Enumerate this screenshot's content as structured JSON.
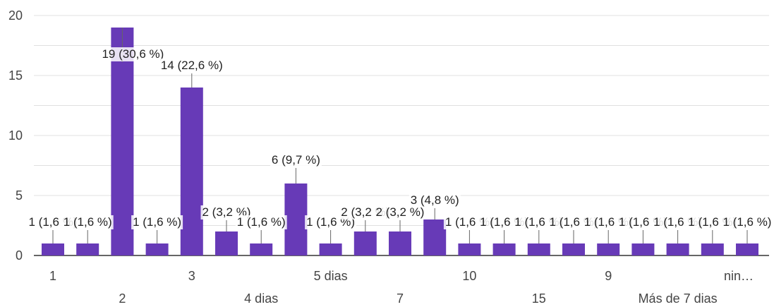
{
  "chart_data": {
    "type": "bar",
    "categories": [
      "1",
      "",
      "2",
      "",
      "3",
      "",
      "4 dias",
      "",
      "5 dias",
      "",
      "7",
      "",
      "10",
      "",
      "15",
      "",
      "9",
      "",
      "Más de 7 dias",
      "",
      "nin…"
    ],
    "tick_labels": [
      "1",
      "2",
      "3",
      "4 dias",
      "5 dias",
      "7",
      "10",
      "15",
      "9",
      "Más de 7 dias",
      "nin…"
    ],
    "values": [
      1,
      1,
      19,
      1,
      14,
      2,
      1,
      6,
      1,
      2,
      2,
      3,
      1,
      1,
      1,
      1,
      1,
      1,
      1,
      1,
      1
    ],
    "data_labels": [
      "1 (1,6 %)",
      "1 (1,6 %)",
      "19 (30,6 %)",
      "1 (1,6 %)",
      "14 (22,6 %)",
      "2 (3,2 %)",
      "1 (1,6 %)",
      "6 (9,7 %)",
      "1 (1,6 %)",
      "2 (3,2 %)",
      "2 (3,2 %)",
      "3 (4,8 %)",
      "1 (1,6 %)",
      "1 (1,6 %)",
      "1 (1,6 %)",
      "1 (1,6 %)",
      "1 (1,6 %)",
      "1 (1,6 %)",
      "1 (1,6 %)",
      "1 (1,6 %)",
      "1 (1,6 %)"
    ],
    "ylim": [
      0,
      20
    ],
    "yticks": [
      0,
      5,
      10,
      15,
      20
    ],
    "grid": true,
    "colors": {
      "bar": "#673ab7",
      "grid": "#e0e0e0",
      "axis": "#333333"
    }
  }
}
